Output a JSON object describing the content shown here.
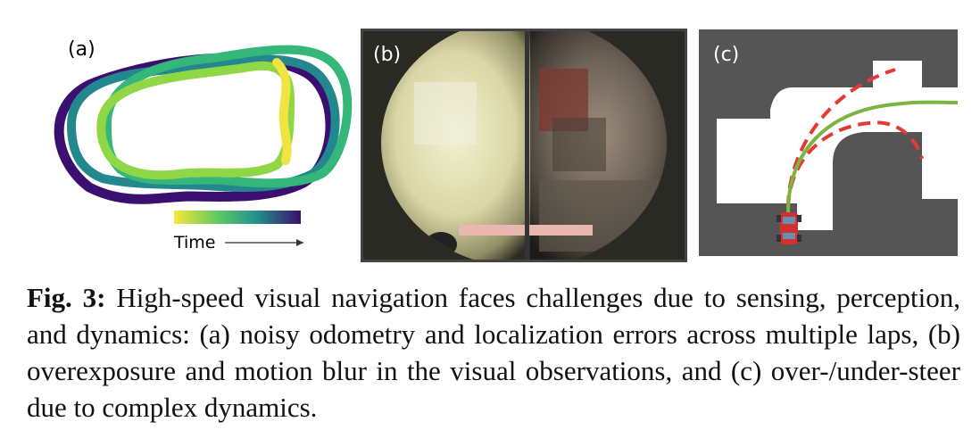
{
  "panels": {
    "a": {
      "label": "(a)",
      "colorbar_label": "Time"
    },
    "b": {
      "label": "(b)"
    },
    "c": {
      "label": "(c)"
    }
  },
  "caption": {
    "prefix": "Fig. 3:",
    "text": "High-speed visual navigation faces challenges due to sensing, perception, and dynamics: (a) noisy odometry and localization errors across multiple laps, (b) overexposure and motion blur in the visual observations, and (c) over-/under-steer due to complex dynamics."
  },
  "colors": {
    "colormap_start": "#f0e442",
    "colormap_end": "#3b0f70",
    "map_wall": "#555555",
    "path_good": "#7cb342",
    "path_bad": "#e53935",
    "car": "#d32f2f"
  }
}
